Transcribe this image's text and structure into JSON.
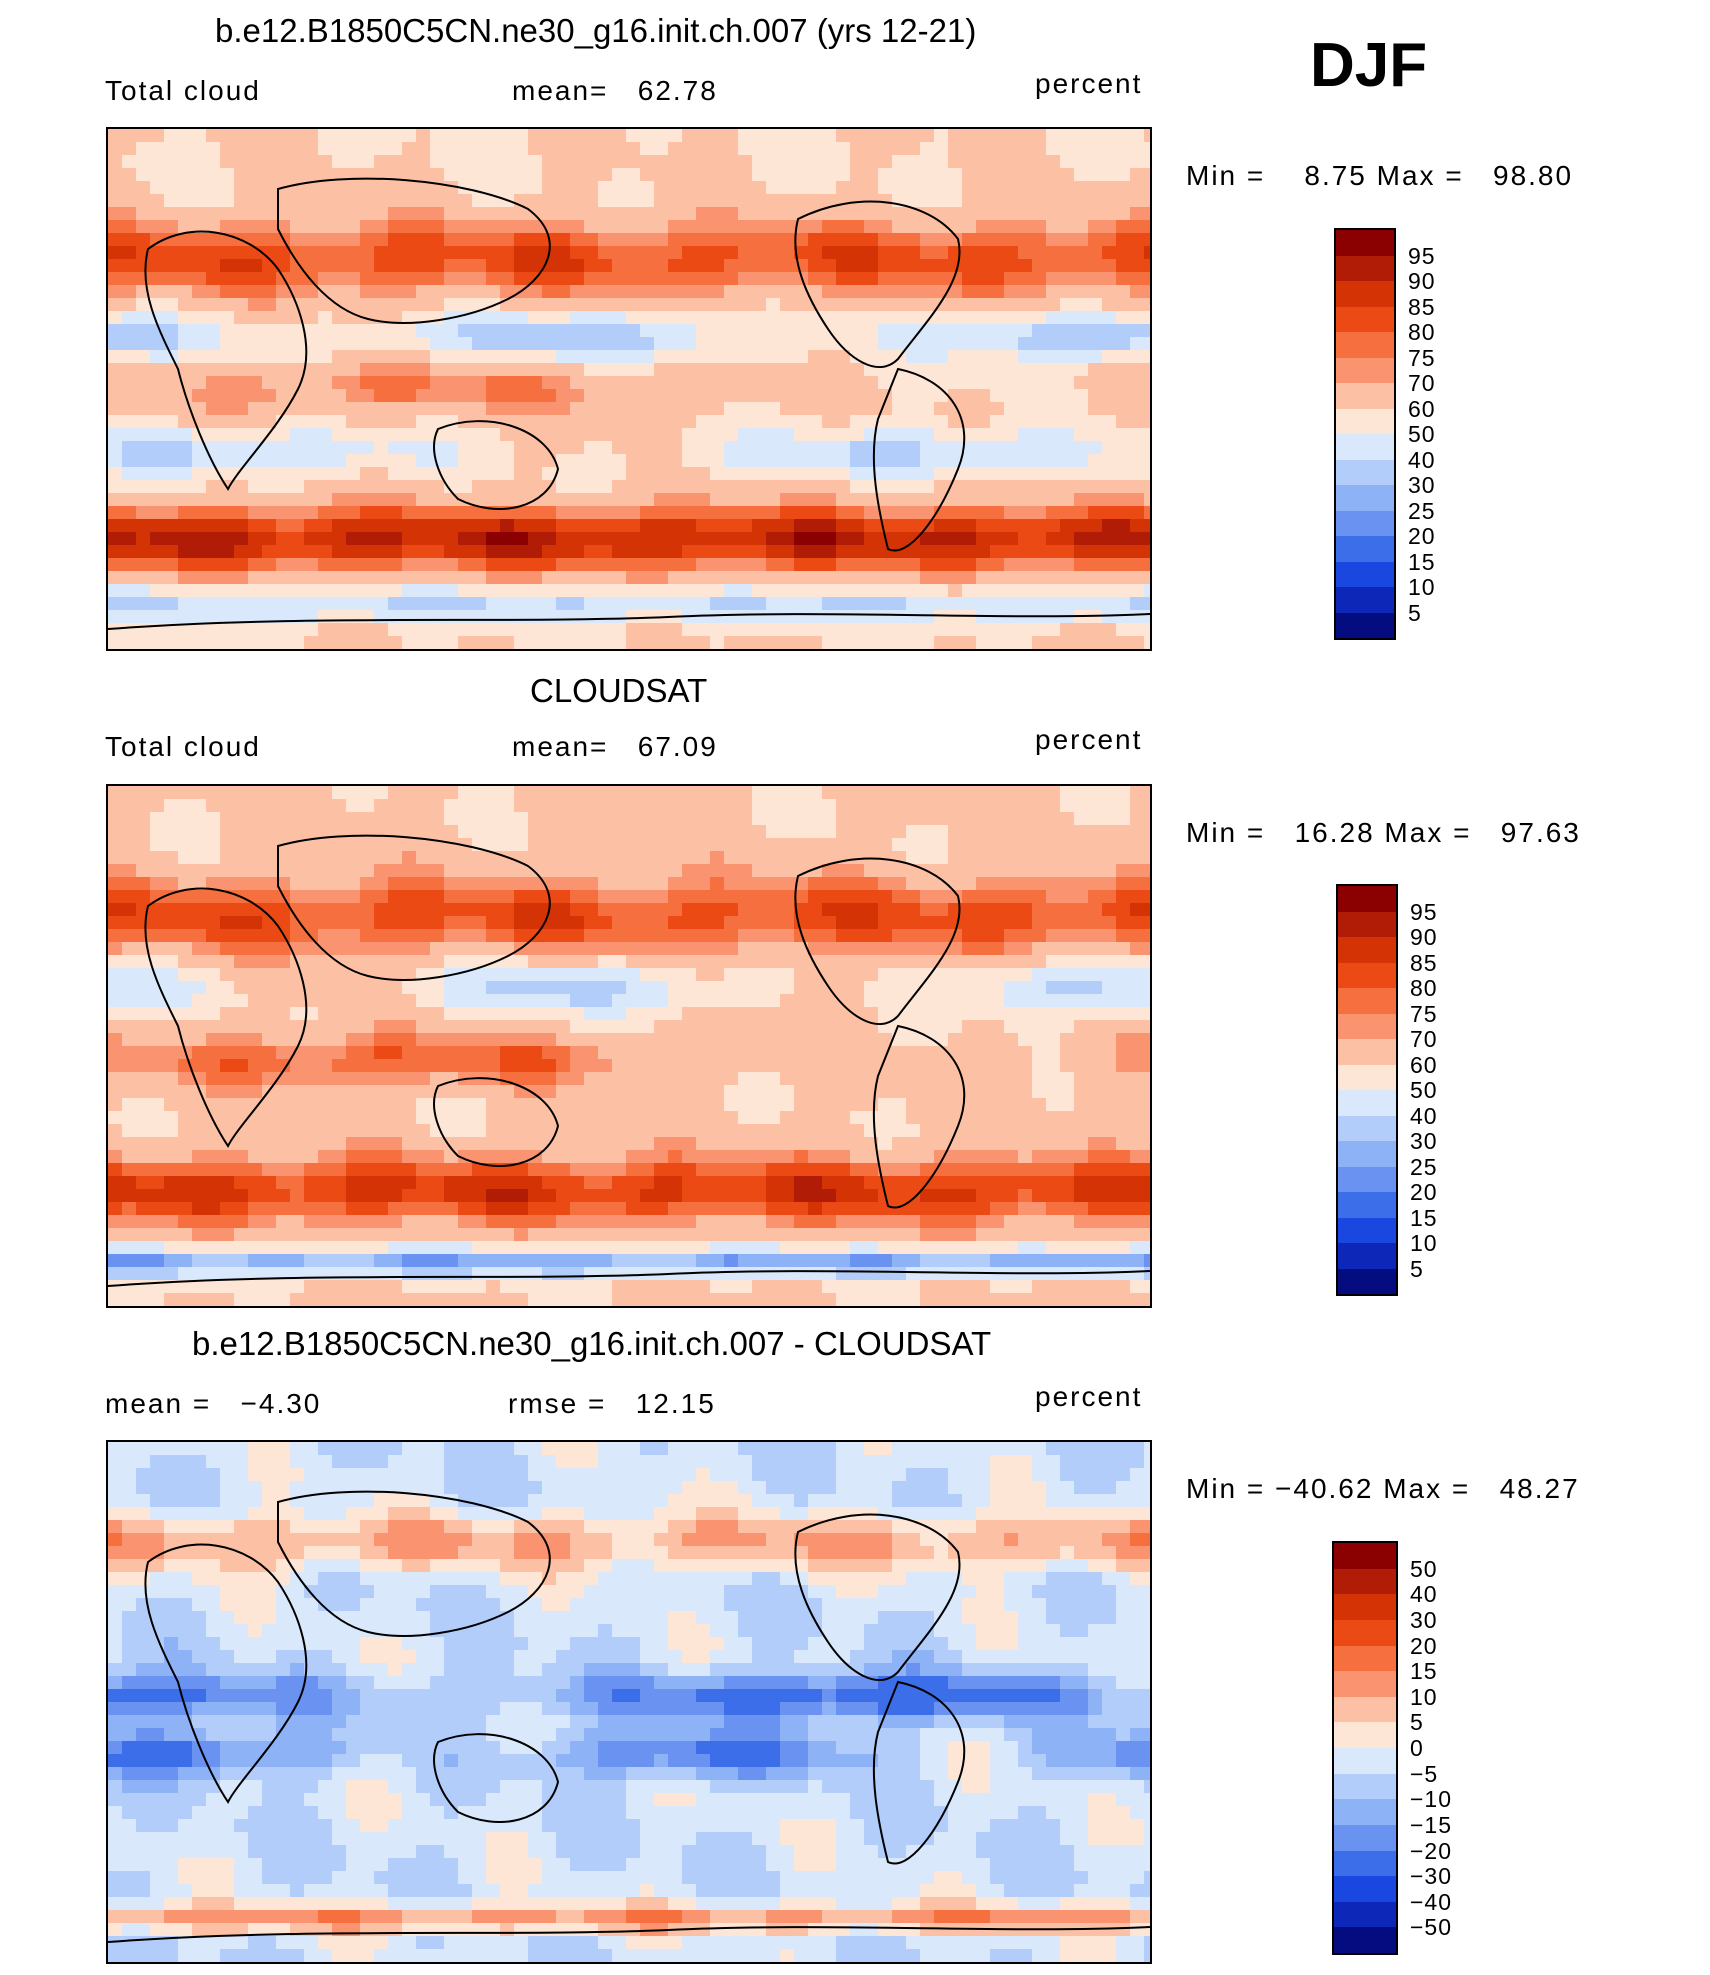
{
  "season": "DJF",
  "units": "percent",
  "panels": [
    {
      "title": "b.e12.B1850C5CN.ne30_g16.init.ch.007 (yrs 12-21)",
      "left_label": "Total cloud",
      "stat_label": "mean=",
      "stat_value": "62.78",
      "right_label": "percent",
      "minmax": "Min =    8.75 Max =   98.80"
    },
    {
      "title": "CLOUDSAT",
      "left_label": "Total cloud",
      "stat_label": "mean=",
      "stat_value": "67.09",
      "right_label": "percent",
      "minmax": "Min =   16.28 Max =   97.63"
    },
    {
      "title": "b.e12.B1850C5CN.ne30_g16.init.ch.007 - CLOUDSAT",
      "left_label": "mean =",
      "left_value": "−4.30",
      "stat_label": "rmse =",
      "stat_value": "12.15",
      "right_label": "percent",
      "minmax": "Min = −40.62 Max =   48.27"
    }
  ],
  "chart_data": [
    {
      "type": "heatmap",
      "title": "b.e12.B1850C5CN.ne30_g16.init.ch.007 (yrs 12-21)",
      "variable": "Total cloud",
      "units": "percent",
      "mean": 62.78,
      "min": 8.75,
      "max": 98.8,
      "colorbar_levels": [
        "95",
        "90",
        "85",
        "80",
        "75",
        "70",
        "60",
        "50",
        "40",
        "30",
        "25",
        "20",
        "15",
        "10",
        "5"
      ],
      "colors": [
        "#8b0000",
        "#b01c06",
        "#d43306",
        "#ec4a14",
        "#f66f3e",
        "#fa9370",
        "#fcc1a4",
        "#fde6d6",
        "#d9e8fb",
        "#b2cdf9",
        "#8db2f6",
        "#6a92f0",
        "#3b6ee8",
        "#1a47e0",
        "#0d28b8",
        "#050c80"
      ]
    },
    {
      "type": "heatmap",
      "title": "CLOUDSAT",
      "variable": "Total cloud",
      "units": "percent",
      "mean": 67.09,
      "min": 16.28,
      "max": 97.63,
      "colorbar_levels": [
        "95",
        "90",
        "85",
        "80",
        "75",
        "70",
        "60",
        "50",
        "40",
        "30",
        "25",
        "20",
        "15",
        "10",
        "5"
      ],
      "colors": [
        "#8b0000",
        "#b01c06",
        "#d43306",
        "#ec4a14",
        "#f66f3e",
        "#fa9370",
        "#fcc1a4",
        "#fde6d6",
        "#d9e8fb",
        "#b2cdf9",
        "#8db2f6",
        "#6a92f0",
        "#3b6ee8",
        "#1a47e0",
        "#0d28b8",
        "#050c80"
      ]
    },
    {
      "type": "heatmap",
      "title": "b.e12.B1850C5CN.ne30_g16.init.ch.007 - CLOUDSAT",
      "units": "percent",
      "mean": -4.3,
      "rmse": 12.15,
      "min": -40.62,
      "max": 48.27,
      "colorbar_levels": [
        "50",
        "40",
        "30",
        "20",
        "15",
        "10",
        "5",
        "0",
        "−5",
        "−10",
        "−15",
        "−20",
        "−30",
        "−40",
        "−50"
      ],
      "colors": [
        "#8b0000",
        "#b01c06",
        "#d43306",
        "#ec4a14",
        "#f66f3e",
        "#fa9370",
        "#fcc1a4",
        "#fde6d6",
        "#d9e8fb",
        "#b2cdf9",
        "#8db2f6",
        "#6a92f0",
        "#3b6ee8",
        "#1a47e0",
        "#0d28b8",
        "#050c80"
      ]
    }
  ]
}
